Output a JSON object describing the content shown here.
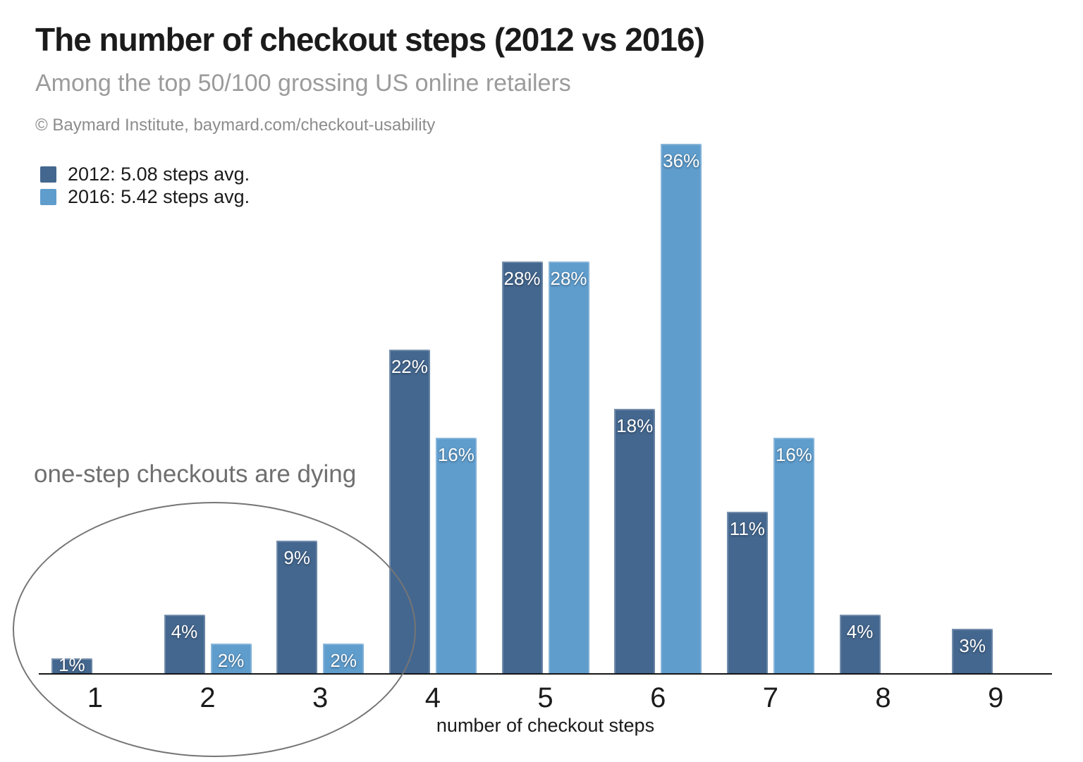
{
  "header": {
    "title": "The number of checkout steps (2012 vs 2016)",
    "subtitle": "Among the top 50/100 grossing US online retailers",
    "attribution": "© Baymard Institute, baymard.com/checkout-usability"
  },
  "legend": {
    "items": [
      {
        "name": "2012",
        "label": "2012: 5.08 steps avg.",
        "color": "#44678f"
      },
      {
        "name": "2016",
        "label": "2016: 5.42 steps avg.",
        "color": "#5f9dcd"
      }
    ]
  },
  "annotation": {
    "text": "one-step checkouts are dying"
  },
  "chart_data": {
    "type": "bar",
    "title": "The number of checkout steps (2012 vs 2016)",
    "subtitle": "Among the top 50/100 grossing US online retailers",
    "categories": [
      "1",
      "2",
      "3",
      "4",
      "5",
      "6",
      "7",
      "8",
      "9"
    ],
    "series": [
      {
        "name": "2012",
        "color": "#44678f",
        "values": [
          1,
          4,
          9,
          22,
          28,
          18,
          11,
          4,
          3
        ]
      },
      {
        "name": "2016",
        "color": "#5f9dcd",
        "values": [
          null,
          2,
          2,
          16,
          28,
          36,
          16,
          null,
          null
        ]
      }
    ],
    "value_suffix": "%",
    "xlabel": "number of checkout steps",
    "ylabel": "",
    "ylim": [
      0,
      38.6
    ],
    "grid": false,
    "legend_position": "top-left",
    "data_labels": "inside-top",
    "annotation": "one-step checkouts are dying",
    "annotation_target": "steps 1-3 circled"
  },
  "colors": {
    "series_2012": "#44678f",
    "series_2016": "#5f9dcd",
    "value_label_text": "#ffffff",
    "axis_line": "#161616",
    "annotation_gray": "#6f6f6f",
    "title_text": "#1b1b1b",
    "subtitle_text": "#9b9b9b"
  }
}
